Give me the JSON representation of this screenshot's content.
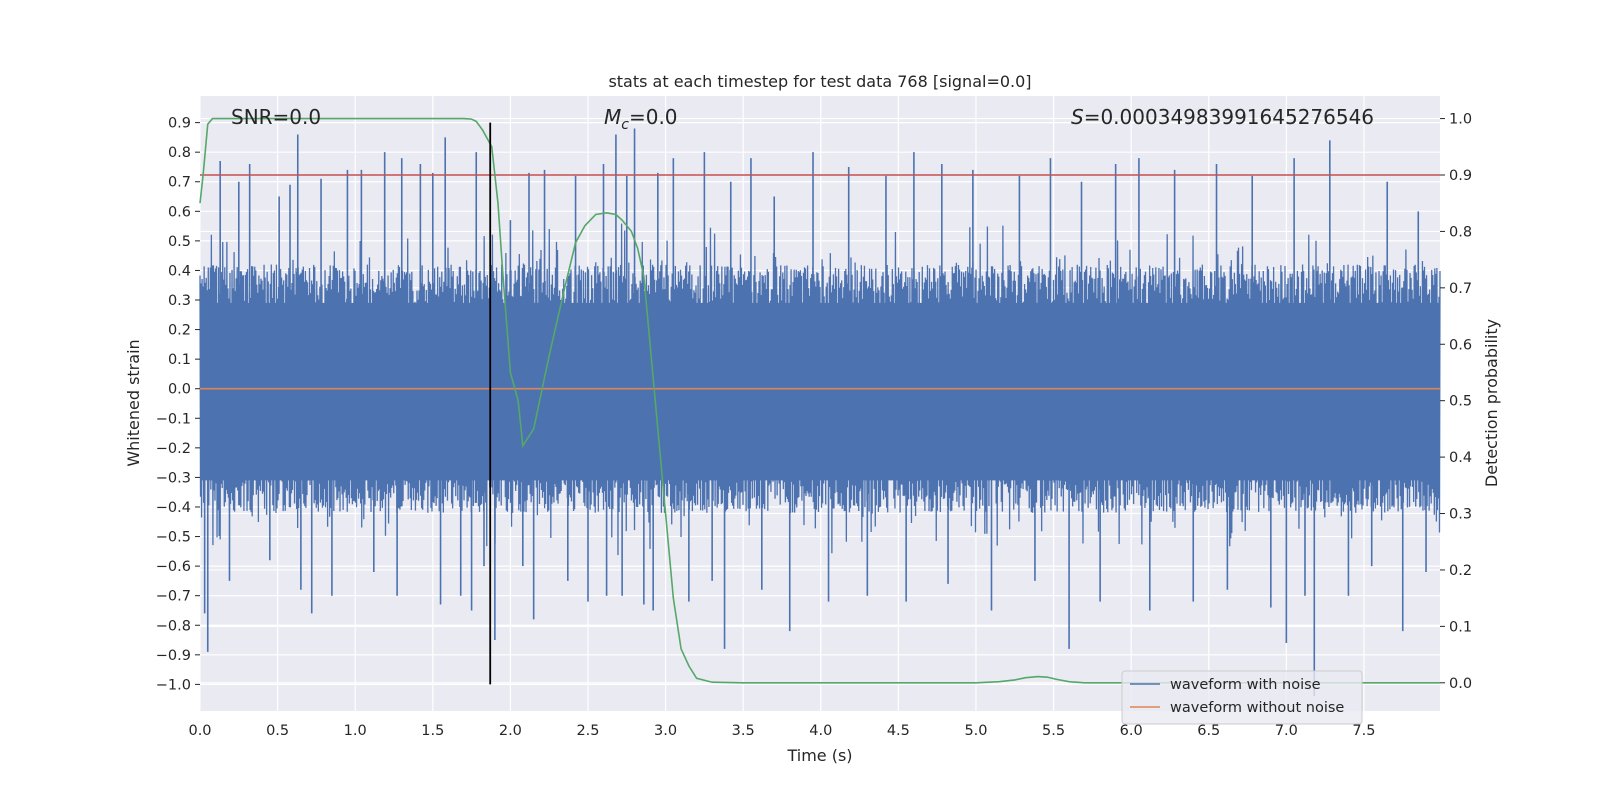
{
  "chart_data": {
    "type": "line",
    "title": "stats at each timestep for test data 768 [signal=0.0]",
    "xlabel": "Time (s)",
    "ylabel": "Whitened strain",
    "y2label": "Detection probability",
    "xlim": [
      0.0,
      7.99
    ],
    "ylim": [
      -1.09,
      0.99
    ],
    "y2lim": [
      -0.05,
      1.04
    ],
    "xticks": [
      "0.0",
      "0.5",
      "1.0",
      "1.5",
      "2.0",
      "2.5",
      "3.0",
      "3.5",
      "4.0",
      "4.5",
      "5.0",
      "5.5",
      "6.0",
      "6.5",
      "7.0",
      "7.5"
    ],
    "yticks": [
      "0.9",
      "0.8",
      "0.7",
      "0.6",
      "0.5",
      "0.4",
      "0.3",
      "0.2",
      "0.1",
      "0.0",
      "-0.1",
      "-0.2",
      "-0.3",
      "-0.4",
      "-0.5",
      "-0.6",
      "-0.7",
      "-0.8",
      "-0.9",
      "-1.0"
    ],
    "y2ticks": [
      "1.0",
      "0.9",
      "0.8",
      "0.7",
      "0.6",
      "0.5",
      "0.4",
      "0.3",
      "0.2",
      "0.1",
      "0.0"
    ],
    "grid": true,
    "legend_position": "bottom-right",
    "annotations": {
      "snr": "SNR=0.0",
      "mc_symbol": "M",
      "mc_sub": "c",
      "mc_value": "=0.0",
      "s_symbol": "S",
      "s_value": "=0.00034983991645276546"
    },
    "series": [
      {
        "name": "waveform with noise",
        "color": "#4c72b0",
        "axis": "left",
        "kind": "noise",
        "envelope_typical": [
          -0.42,
          0.42
        ],
        "peaks": [
          [
            0.03,
            -0.76
          ],
          [
            0.05,
            -0.89
          ],
          [
            0.13,
            0.77
          ],
          [
            0.19,
            -0.65
          ],
          [
            0.25,
            0.7
          ],
          [
            0.32,
            0.76
          ],
          [
            0.45,
            -0.58
          ],
          [
            0.51,
            0.65
          ],
          [
            0.58,
            0.69
          ],
          [
            0.63,
            0.86
          ],
          [
            0.65,
            -0.68
          ],
          [
            0.72,
            -0.76
          ],
          [
            0.78,
            0.71
          ],
          [
            0.85,
            -0.7
          ],
          [
            0.95,
            0.74
          ],
          [
            1.04,
            0.74
          ],
          [
            1.12,
            -0.62
          ],
          [
            1.19,
            0.8
          ],
          [
            1.27,
            -0.7
          ],
          [
            1.3,
            0.78
          ],
          [
            1.42,
            0.76
          ],
          [
            1.5,
            0.73
          ],
          [
            1.55,
            -0.73
          ],
          [
            1.58,
            0.85
          ],
          [
            1.68,
            -0.7
          ],
          [
            1.75,
            -0.75
          ],
          [
            1.78,
            0.8
          ],
          [
            1.83,
            -0.6
          ],
          [
            1.9,
            -0.85
          ],
          [
            2.0,
            0.57
          ],
          [
            2.08,
            -0.6
          ],
          [
            2.12,
            0.73
          ],
          [
            2.15,
            -0.78
          ],
          [
            2.22,
            0.74
          ],
          [
            2.37,
            -0.65
          ],
          [
            2.42,
            0.72
          ],
          [
            2.5,
            -0.72
          ],
          [
            2.6,
            0.76
          ],
          [
            2.62,
            -0.7
          ],
          [
            2.68,
            0.86
          ],
          [
            2.72,
            -0.7
          ],
          [
            2.75,
            0.72
          ],
          [
            2.8,
            0.88
          ],
          [
            2.86,
            -0.73
          ],
          [
            2.92,
            -0.75
          ],
          [
            2.95,
            0.73
          ],
          [
            3.05,
            0.78
          ],
          [
            3.15,
            -0.72
          ],
          [
            3.25,
            0.8
          ],
          [
            3.3,
            -0.65
          ],
          [
            3.38,
            -0.88
          ],
          [
            3.42,
            0.7
          ],
          [
            3.55,
            0.78
          ],
          [
            3.62,
            -0.68
          ],
          [
            3.7,
            0.65
          ],
          [
            3.8,
            -0.82
          ],
          [
            3.95,
            0.8
          ],
          [
            4.05,
            -0.72
          ],
          [
            4.18,
            0.75
          ],
          [
            4.3,
            -0.7
          ],
          [
            4.42,
            0.72
          ],
          [
            4.55,
            -0.72
          ],
          [
            4.6,
            0.8
          ],
          [
            4.78,
            0.76
          ],
          [
            4.82,
            -0.66
          ],
          [
            4.98,
            0.74
          ],
          [
            5.1,
            -0.75
          ],
          [
            5.28,
            0.72
          ],
          [
            5.38,
            -0.65
          ],
          [
            5.48,
            0.78
          ],
          [
            5.6,
            -0.88
          ],
          [
            5.68,
            0.7
          ],
          [
            5.8,
            -0.72
          ],
          [
            5.9,
            0.76
          ],
          [
            6.05,
            0.78
          ],
          [
            6.12,
            -0.75
          ],
          [
            6.28,
            0.74
          ],
          [
            6.4,
            -0.72
          ],
          [
            6.55,
            0.76
          ],
          [
            6.62,
            -0.68
          ],
          [
            6.78,
            0.72
          ],
          [
            6.9,
            -0.74
          ],
          [
            7.0,
            -0.86
          ],
          [
            7.05,
            0.78
          ],
          [
            7.12,
            -0.7
          ],
          [
            7.18,
            -1.04
          ],
          [
            7.28,
            0.84
          ],
          [
            7.4,
            -0.7
          ],
          [
            7.55,
            -0.6
          ],
          [
            7.65,
            0.7
          ],
          [
            7.75,
            -0.82
          ],
          [
            7.85,
            0.6
          ],
          [
            7.9,
            -0.62
          ]
        ]
      },
      {
        "name": "waveform without noise",
        "color": "#dd8452",
        "axis": "left",
        "x": [
          0.0,
          7.99
        ],
        "y": [
          0.0,
          0.0
        ]
      },
      {
        "name": "",
        "color": "#55a868",
        "axis": "right",
        "x": [
          0.0,
          0.02,
          0.05,
          0.08,
          0.12,
          0.2,
          0.3,
          0.5,
          1.0,
          1.5,
          1.7,
          1.75,
          1.78,
          1.82,
          1.88,
          1.92,
          1.95,
          2.0,
          2.05,
          2.08,
          2.15,
          2.25,
          2.35,
          2.42,
          2.48,
          2.55,
          2.62,
          2.68,
          2.72,
          2.78,
          2.82,
          2.86,
          2.9,
          2.95,
          3.0,
          3.05,
          3.1,
          3.15,
          3.2,
          3.3,
          3.5,
          4.0,
          4.5,
          5.0,
          5.15,
          5.25,
          5.32,
          5.4,
          5.46,
          5.52,
          5.6,
          5.7,
          6.0,
          7.0,
          7.99
        ],
        "y": [
          0.85,
          0.9,
          0.99,
          1.0,
          1.0,
          1.0,
          1.0,
          1.0,
          1.0,
          1.0,
          1.0,
          0.999,
          0.995,
          0.98,
          0.95,
          0.85,
          0.73,
          0.55,
          0.5,
          0.42,
          0.45,
          0.58,
          0.7,
          0.78,
          0.81,
          0.83,
          0.833,
          0.83,
          0.82,
          0.8,
          0.77,
          0.72,
          0.6,
          0.45,
          0.3,
          0.15,
          0.06,
          0.03,
          0.008,
          0.001,
          0.0,
          0.0,
          0.0,
          0.0,
          0.002,
          0.005,
          0.009,
          0.011,
          0.01,
          0.006,
          0.002,
          0.0,
          0.0,
          0.0,
          0.0
        ]
      }
    ],
    "hlines": [
      {
        "axis": "right",
        "y": 0.9,
        "color": "#c44e52"
      }
    ],
    "vlines": [
      {
        "x": 1.87,
        "y_from": -1.0,
        "y_to": 0.9,
        "color": "#000000"
      }
    ]
  }
}
